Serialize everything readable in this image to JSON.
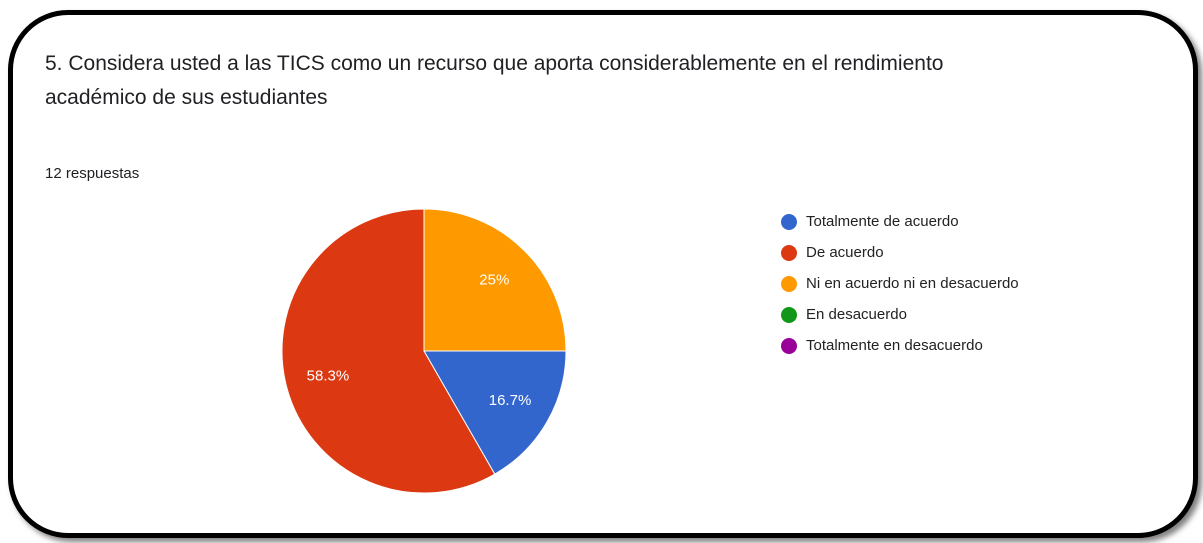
{
  "chart_data": {
    "type": "pie",
    "title": "5. Considera usted a las TICS como un recurso que aporta considerablemente en el rendimiento académico de sus estudiantes",
    "subtitle": "12 respuestas",
    "categories": [
      "Totalmente de acuerdo",
      "De acuerdo",
      "Ni en acuerdo ni en desacuerdo",
      "En desacuerdo",
      "Totalmente en desacuerdo"
    ],
    "values": [
      16.7,
      58.3,
      25,
      0,
      0
    ],
    "value_labels": [
      "16.7%",
      "58.3%",
      "25%",
      null,
      null
    ],
    "colors": [
      "#3366cc",
      "#dc3912",
      "#ff9900",
      "#109618",
      "#990099"
    ],
    "legend": "right"
  }
}
